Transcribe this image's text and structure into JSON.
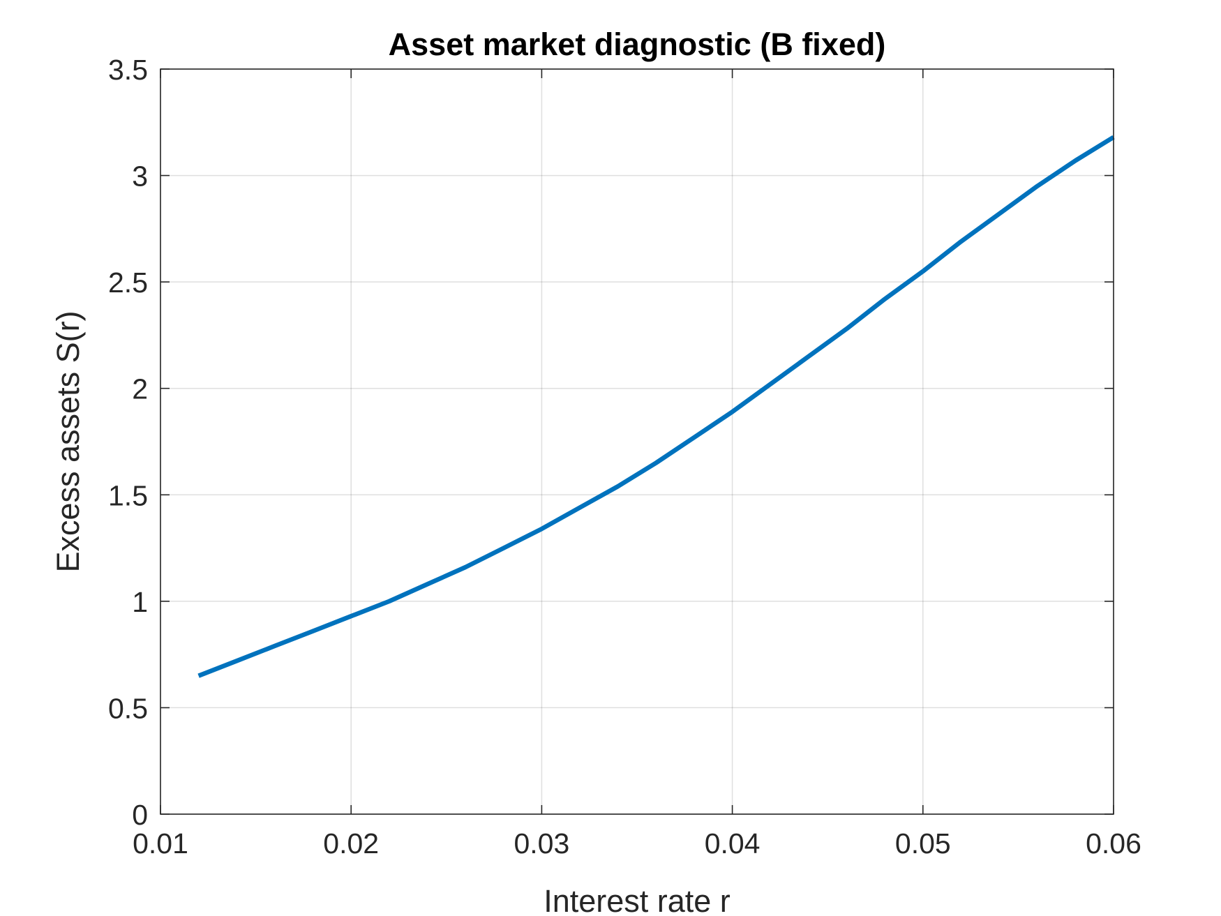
{
  "chart_data": {
    "type": "line",
    "title": "Asset market diagnostic (B fixed)",
    "xlabel": "Interest rate r",
    "ylabel": "Excess assets S(r)",
    "xlim": [
      0.01,
      0.06
    ],
    "ylim": [
      0,
      3.5
    ],
    "xticks": [
      "0.01",
      "0.02",
      "0.03",
      "0.04",
      "0.05",
      "0.06"
    ],
    "yticks": [
      "0",
      "0.5",
      "1",
      "1.5",
      "2",
      "2.5",
      "3",
      "3.5"
    ],
    "grid": true,
    "box": true,
    "series": [
      {
        "color": "#0072BD",
        "x": [
          0.012,
          0.014,
          0.016,
          0.018,
          0.02,
          0.022,
          0.024,
          0.026,
          0.028,
          0.03,
          0.032,
          0.034,
          0.036,
          0.038,
          0.04,
          0.042,
          0.044,
          0.046,
          0.048,
          0.05,
          0.052,
          0.054,
          0.056,
          0.058,
          0.06
        ],
        "y": [
          0.65,
          0.72,
          0.79,
          0.86,
          0.93,
          1.0,
          1.08,
          1.16,
          1.25,
          1.34,
          1.44,
          1.54,
          1.65,
          1.77,
          1.89,
          2.02,
          2.15,
          2.28,
          2.42,
          2.55,
          2.69,
          2.82,
          2.95,
          3.07,
          3.18
        ]
      }
    ]
  }
}
